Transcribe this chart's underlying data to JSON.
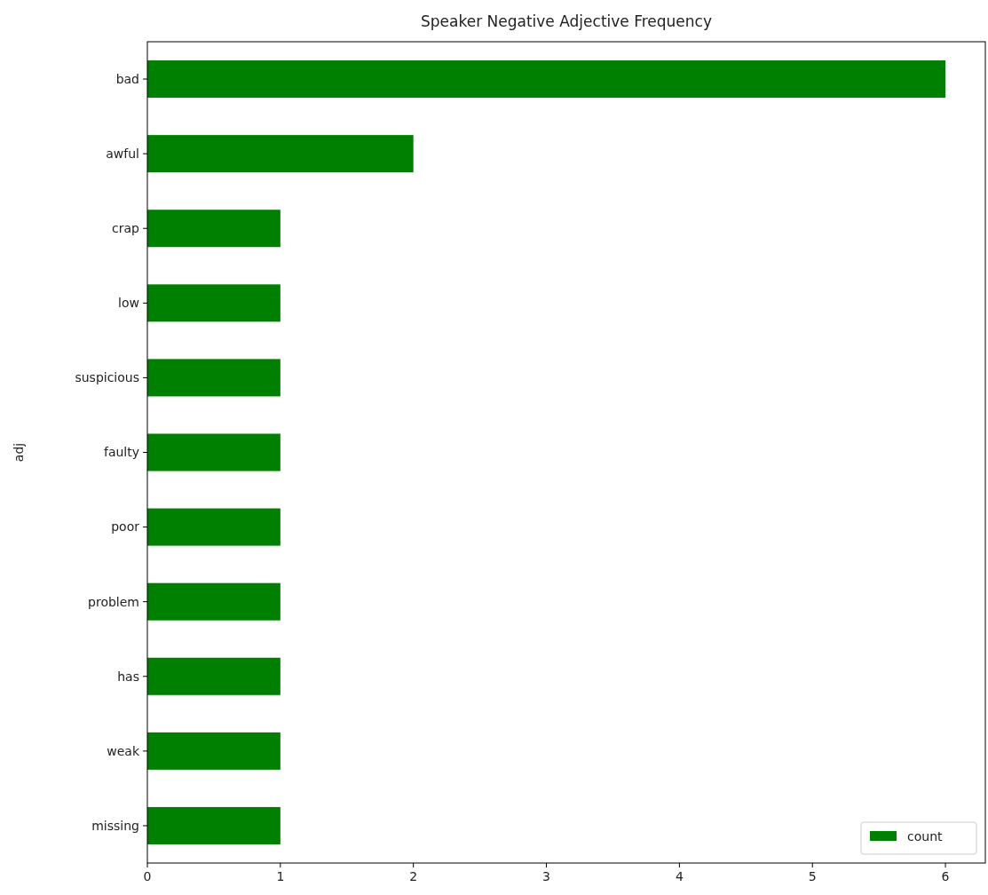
{
  "chart_data": {
    "type": "bar",
    "orientation": "horizontal",
    "title": "Speaker Negative Adjective Frequency",
    "ylabel": "adj",
    "categories": [
      "bad",
      "awful",
      "crap",
      "low",
      "suspicious",
      "faulty",
      "poor",
      "problem",
      "has",
      "weak",
      "missing"
    ],
    "series": [
      {
        "name": "count",
        "color": "#008000",
        "values": [
          6,
          2,
          1,
          1,
          1,
          1,
          1,
          1,
          1,
          1,
          1
        ]
      }
    ],
    "xlim": [
      0,
      6.3
    ],
    "xticks": [
      0,
      1,
      2,
      3,
      4,
      5,
      6
    ],
    "legend": "bottom right",
    "grid": false
  }
}
